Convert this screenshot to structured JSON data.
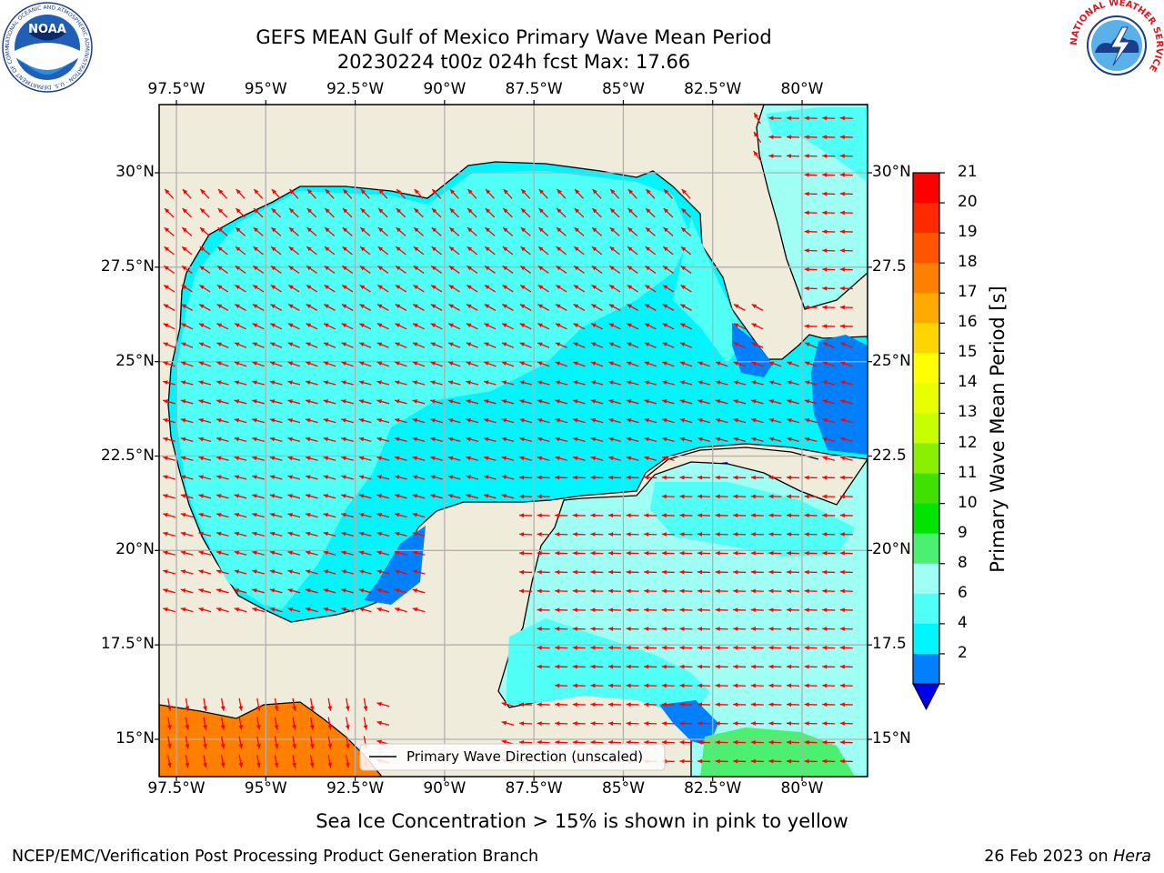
{
  "header": {
    "title_line1": "GEFS MEAN Gulf of Mexico Primary Wave Mean Period",
    "title_line2": "20230224 t00z 024h fcst   Max: 17.66",
    "left_logo_text": "NOAA",
    "left_logo_ring": "NATIONAL OCEANIC AND ATMOSPHERIC ADMINISTRATION · U.S. DEPARTMENT OF COMMERCE",
    "right_logo_ring": "NATIONAL WEATHER SERVICE"
  },
  "map": {
    "lon_labels": [
      "97.5°W",
      "95°W",
      "92.5°W",
      "90°W",
      "87.5°W",
      "85°W",
      "82.5°W",
      "80°W"
    ],
    "lat_labels_left": [
      "30°N",
      "27.5°N",
      "25°N",
      "22.5°N",
      "20°N",
      "17.5°N",
      "15°N"
    ],
    "lat_labels_right": [
      "30°N",
      "27.5",
      "25°N",
      "22.5",
      "20°N",
      "17.5",
      "15°N"
    ],
    "lon_values": [
      -97.5,
      -95,
      -92.5,
      -90,
      -87.5,
      -85,
      -82.5,
      -80
    ],
    "lat_values": [
      30,
      27.5,
      25,
      22.5,
      20,
      17.5,
      15
    ],
    "legend_label": "Primary Wave Direction (unscaled)",
    "land_color": "#efecdc",
    "arrow_color": "#ff0000"
  },
  "colorbar": {
    "label": "Primary Wave Mean Period [s]",
    "ticks": [
      "21",
      "20",
      "19",
      "18",
      "17",
      "16",
      "15",
      "14",
      "13",
      "12",
      "11",
      "10",
      "9",
      "8",
      "6",
      "4",
      "2"
    ],
    "colors": [
      "#ff0000",
      "#ff2a00",
      "#ff5500",
      "#ff8000",
      "#ffaa00",
      "#ffd400",
      "#ffff00",
      "#e8ff00",
      "#c8ff00",
      "#88f000",
      "#40e000",
      "#00e400",
      "#4cf070",
      "#a0fff5",
      "#50fff5",
      "#00f5ff",
      "#0080ff"
    ],
    "under_color": "#0000ee"
  },
  "caption": "Sea Ice Concentration > 15% is shown in pink to yellow",
  "footer": {
    "left": "NCEP/EMC/Verification Post Processing Product Generation Branch",
    "right_prefix": "26 Feb 2023 on ",
    "right_italic": "Hera"
  }
}
